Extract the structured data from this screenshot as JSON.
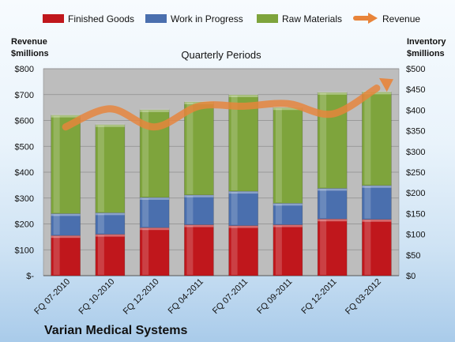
{
  "chart_data": {
    "type": "bar",
    "stacked": true,
    "title": "Quarterly Periods",
    "company": "Varian Medical Systems",
    "categories": [
      "FQ 07-2010",
      "FQ 10-2010",
      "FQ 12-2010",
      "FQ 04-2011",
      "FQ 07-2011",
      "FQ 09-2011",
      "FQ 12-2011",
      "FQ 03-2012"
    ],
    "left_axis": {
      "label_line1": "Revenue",
      "label_line2": "$millions",
      "ylim": [
        0,
        800
      ],
      "ticks": [
        0,
        100,
        200,
        300,
        400,
        500,
        600,
        700,
        800
      ],
      "tick_labels": [
        "$-",
        "$100",
        "$200",
        "$300",
        "$400",
        "$500",
        "$600",
        "$700",
        "$800"
      ]
    },
    "right_axis": {
      "label_line1": "Inventory",
      "label_line2": "$millions",
      "ylim": [
        0,
        500
      ],
      "ticks": [
        0,
        50,
        100,
        150,
        200,
        250,
        300,
        350,
        400,
        450,
        500
      ],
      "tick_labels": [
        "$0",
        "$50",
        "$100",
        "$150",
        "$200",
        "$250",
        "$300",
        "$350",
        "$400",
        "$450",
        "$500"
      ]
    },
    "series": [
      {
        "name": "Finished Goods",
        "axis": "right",
        "kind": "bar",
        "color": "#c0171c",
        "values": [
          97,
          100,
          116,
          123,
          121,
          123,
          137,
          136
        ]
      },
      {
        "name": "Work in Progress",
        "axis": "right",
        "kind": "bar",
        "color": "#4a6fae",
        "values": [
          53,
          52,
          73,
          72,
          83,
          52,
          74,
          82
        ]
      },
      {
        "name": "Raw Materials",
        "axis": "right",
        "kind": "bar",
        "color": "#7ea43c",
        "values": [
          238,
          213,
          212,
          225,
          233,
          231,
          232,
          226
        ]
      },
      {
        "name": "Revenue",
        "axis": "left",
        "kind": "line",
        "color": "#e8843a",
        "values": [
          575,
          645,
          575,
          655,
          655,
          665,
          625,
          725
        ]
      }
    ],
    "grid": true,
    "legend_position": "top"
  }
}
